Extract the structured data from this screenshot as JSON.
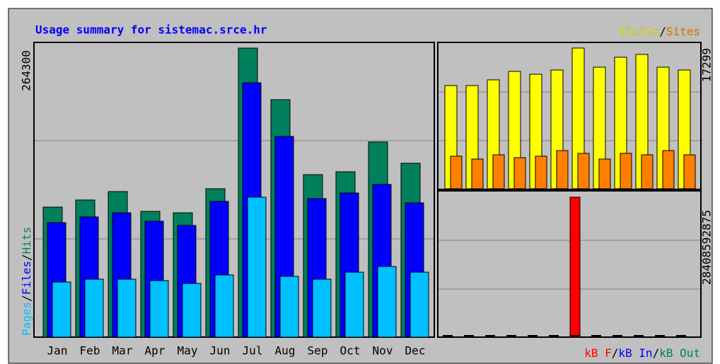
{
  "chart_data": [
    {
      "type": "bar",
      "title": "Usage summary for sistemac.srce.hr",
      "categories": [
        "Jan",
        "Feb",
        "Mar",
        "Apr",
        "May",
        "Jun",
        "Jul",
        "Aug",
        "Sep",
        "Oct",
        "Nov",
        "Dec"
      ],
      "legend_separator": "/",
      "series": [
        {
          "name": "Hits",
          "color": "#00805c",
          "values": [
            118900,
            125400,
            133100,
            115000,
            113700,
            135700,
            264300,
            217100,
            148600,
            151200,
            178400,
            159000
          ]
        },
        {
          "name": "Files",
          "color": "#0000ff",
          "values": [
            104700,
            109900,
            113700,
            106000,
            102100,
            124100,
            232600,
            183500,
            126700,
            131800,
            139600,
            122800
          ]
        },
        {
          "name": "Pages",
          "color": "#00c0ff",
          "values": [
            50400,
            53000,
            53000,
            51700,
            49100,
            56900,
            128000,
            55600,
            53000,
            59400,
            64600,
            59400
          ]
        }
      ],
      "ylim": [
        0,
        264300
      ],
      "yticks": [
        264300
      ]
    },
    {
      "type": "bar",
      "legend_separator": "/",
      "series": [
        {
          "name": "Visits",
          "color": "#ffff00",
          "values": [
            12690,
            12690,
            13390,
            14430,
            14080,
            14600,
            17299,
            14950,
            16170,
            16520,
            14950,
            14600
          ]
        },
        {
          "name": "Sites",
          "color": "#ff8000",
          "values": [
            4000,
            3650,
            4170,
            3820,
            4000,
            4690,
            4350,
            3650,
            4350,
            4170,
            4690,
            4170
          ]
        }
      ],
      "ylim": [
        0,
        17299
      ],
      "yticks": [
        17299
      ]
    },
    {
      "type": "bar",
      "legend_separator": "/",
      "series": [
        {
          "name": "kB F",
          "color": "#ff0000",
          "values": [
            0,
            0,
            0,
            0,
            0,
            0,
            28408592875,
            0,
            0,
            0,
            0,
            0
          ]
        },
        {
          "name": "kB In",
          "color": "#0000ff",
          "values": [
            0,
            0,
            0,
            0,
            0,
            0,
            0,
            0,
            0,
            0,
            0,
            0
          ]
        },
        {
          "name": "kB Out",
          "color": "#00805c",
          "values": [
            0,
            0,
            0,
            0,
            0,
            0,
            0,
            0,
            0,
            0,
            0,
            0
          ]
        }
      ],
      "ylim": [
        0,
        28408592875
      ],
      "yticks": [
        28408592875
      ]
    }
  ]
}
